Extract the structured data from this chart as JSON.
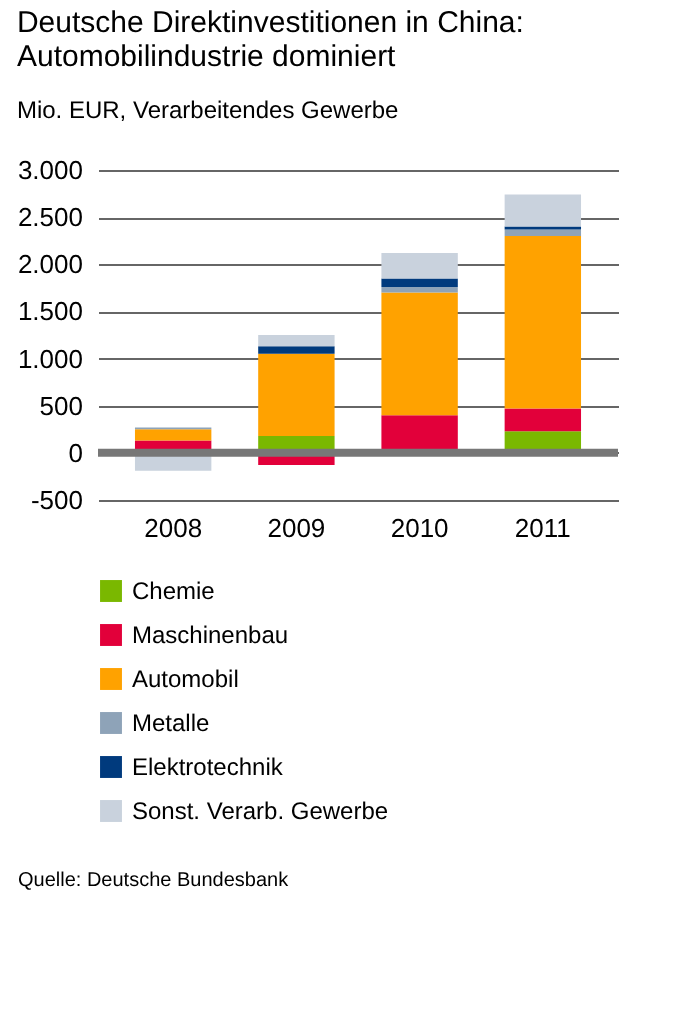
{
  "chart_data": {
    "type": "bar",
    "title": "Deutsche Direktinvestitionen in China:\nAutomobilindustrie dominiert",
    "subtitle": "Mio. EUR, Verarbeitendes Gewerbe",
    "categories": [
      "2008",
      "2009",
      "2010",
      "2011"
    ],
    "series": [
      {
        "name": "Chemie",
        "color": "#7ab800",
        "values": [
          0,
          180,
          0,
          230
        ]
      },
      {
        "name": "Maschinenbau",
        "color": "#e2003a",
        "values": [
          130,
          -130,
          400,
          240
        ]
      },
      {
        "name": "Automobil",
        "color": "#ffa200",
        "values": [
          120,
          870,
          1300,
          1830
        ]
      },
      {
        "name": "Metalle",
        "color": "#8ea3b8",
        "values": [
          20,
          0,
          60,
          70
        ]
      },
      {
        "name": "Elektrotechnik",
        "color": "#003a7d",
        "values": [
          0,
          80,
          90,
          30
        ]
      },
      {
        "name": "Sonst. Verarb. Gewerbe",
        "color": "#c9d2dd",
        "values": [
          -190,
          120,
          270,
          340
        ]
      }
    ],
    "stacked": true,
    "ylim": [
      -500,
      3000
    ],
    "yticks": [
      {
        "value": -500,
        "label": "-500"
      },
      0,
      {
        "value": 500,
        "label": "500"
      },
      {
        "value": 1000,
        "label": "1.000"
      },
      {
        "value": 1500,
        "label": "1.500"
      },
      {
        "value": 2000,
        "label": "2.000"
      },
      {
        "value": 2500,
        "label": "2.500"
      },
      {
        "value": 3000,
        "label": "3.000"
      }
    ],
    "grid": "y",
    "legend": "bottom",
    "ref_lines": [
      {
        "axis": "y",
        "value": 0,
        "color": "#777777"
      }
    ],
    "annotations": [
      "Quelle: Deutsche Bundesbank"
    ]
  }
}
